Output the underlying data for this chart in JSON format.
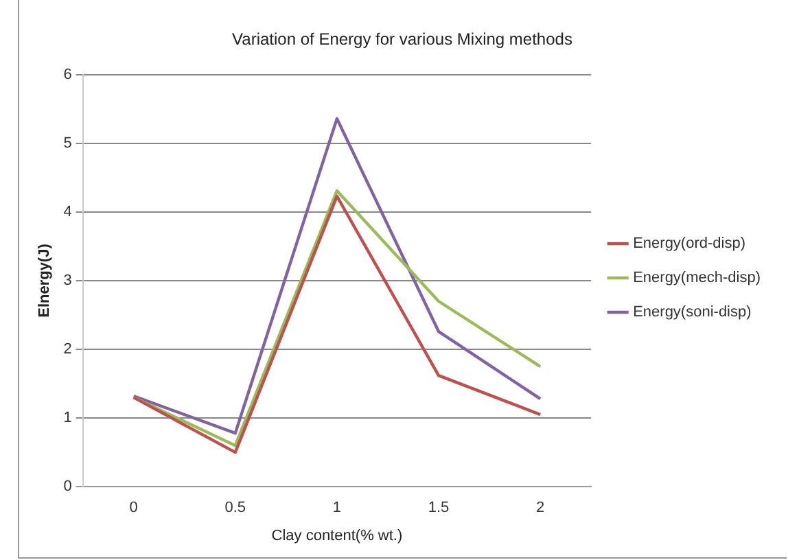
{
  "chart_data": {
    "type": "line",
    "title": "Variation of Energy for various Mixing methods",
    "xlabel": "Clay content(% wt.)",
    "ylabel": "Elnergy(J)",
    "categories": [
      "0",
      "0.5",
      "1",
      "1.5",
      "2"
    ],
    "series": [
      {
        "name": "Energy(ord-disp)",
        "color": "#c0504d",
        "values": [
          1.3,
          0.5,
          4.23,
          1.62,
          1.05
        ]
      },
      {
        "name": "Energy(mech-disp)",
        "color": "#9bbb59",
        "values": [
          1.3,
          0.6,
          4.31,
          2.7,
          1.75
        ]
      },
      {
        "name": "Energy(soni-disp)",
        "color": "#8064a2",
        "values": [
          1.32,
          0.78,
          5.36,
          2.26,
          1.28
        ]
      }
    ],
    "ylim": [
      0,
      6
    ],
    "yticks": [
      0,
      1,
      2,
      3,
      4,
      5,
      6
    ],
    "grid": "y",
    "legend": "right",
    "marker": "none",
    "line_style": "solid"
  }
}
